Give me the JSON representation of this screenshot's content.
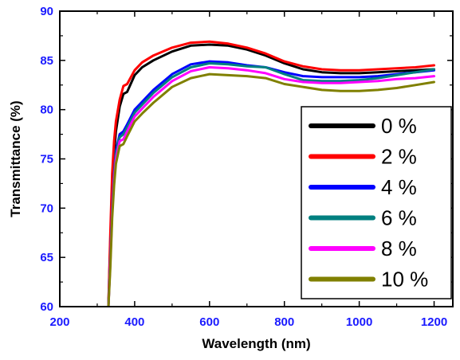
{
  "chart_data": {
    "type": "line",
    "xlabel": "Wavelength (nm)",
    "ylabel": "Transmittance (%)",
    "xlim": [
      200,
      1250
    ],
    "ylim": [
      60,
      90
    ],
    "xticks": [
      200,
      400,
      600,
      800,
      1000,
      1200
    ],
    "yticks": [
      60,
      65,
      70,
      75,
      80,
      85,
      90
    ],
    "grid": false,
    "legend_position": "bottom-right",
    "axis_color": "#000000",
    "tick_label_color": "#1a1aff",
    "series": [
      {
        "name": "0 %",
        "color": "#000000",
        "x": [
          330,
          335,
          340,
          345,
          350,
          360,
          370,
          380,
          400,
          420,
          450,
          500,
          550,
          600,
          650,
          700,
          750,
          800,
          850,
          900,
          950,
          1000,
          1050,
          1100,
          1150,
          1200
        ],
        "y": [
          60.2,
          66.5,
          72.0,
          75.5,
          77.8,
          80.3,
          81.6,
          81.8,
          83.5,
          84.3,
          85.0,
          85.9,
          86.5,
          86.6,
          86.5,
          86.1,
          85.5,
          84.7,
          84.1,
          83.8,
          83.7,
          83.7,
          83.8,
          83.9,
          84.0,
          84.1
        ]
      },
      {
        "name": "2 %",
        "color": "#ff0000",
        "x": [
          330,
          335,
          340,
          345,
          350,
          360,
          370,
          380,
          400,
          420,
          450,
          500,
          550,
          600,
          650,
          700,
          750,
          800,
          850,
          900,
          950,
          1000,
          1050,
          1100,
          1150,
          1200
        ],
        "y": [
          60.2,
          67.5,
          73.5,
          76.8,
          78.8,
          81.0,
          82.4,
          82.6,
          84.0,
          84.8,
          85.5,
          86.3,
          86.8,
          86.9,
          86.7,
          86.3,
          85.7,
          84.9,
          84.4,
          84.1,
          84.0,
          84.0,
          84.1,
          84.2,
          84.3,
          84.5
        ]
      },
      {
        "name": "4 %",
        "color": "#0000ff",
        "x": [
          330,
          335,
          340,
          345,
          350,
          360,
          370,
          380,
          400,
          420,
          450,
          500,
          550,
          600,
          650,
          700,
          750,
          800,
          850,
          900,
          950,
          1000,
          1050,
          1100,
          1150,
          1200
        ],
        "y": [
          60.0,
          65.0,
          70.0,
          73.5,
          75.8,
          77.5,
          77.8,
          78.5,
          80.0,
          80.8,
          82.0,
          83.6,
          84.6,
          84.9,
          84.8,
          84.5,
          84.3,
          83.8,
          83.4,
          83.3,
          83.3,
          83.3,
          83.4,
          83.6,
          83.8,
          84.0
        ]
      },
      {
        "name": "6 %",
        "color": "#008080",
        "x": [
          330,
          335,
          340,
          345,
          350,
          360,
          370,
          380,
          400,
          420,
          450,
          500,
          550,
          600,
          650,
          700,
          750,
          800,
          850,
          900,
          950,
          1000,
          1050,
          1100,
          1150,
          1200
        ],
        "y": [
          60.0,
          64.8,
          69.8,
          73.2,
          75.5,
          77.2,
          77.5,
          78.2,
          79.7,
          80.5,
          81.7,
          83.3,
          84.3,
          84.7,
          84.6,
          84.4,
          84.3,
          83.6,
          83.0,
          82.9,
          82.9,
          83.0,
          83.2,
          83.5,
          83.8,
          84.1
        ]
      },
      {
        "name": "8 %",
        "color": "#ff00ff",
        "x": [
          330,
          335,
          340,
          345,
          350,
          360,
          370,
          380,
          400,
          420,
          450,
          500,
          550,
          600,
          650,
          700,
          750,
          800,
          850,
          900,
          950,
          1000,
          1050,
          1100,
          1150,
          1200
        ],
        "y": [
          60.0,
          64.5,
          69.5,
          72.8,
          75.0,
          76.8,
          77.0,
          77.8,
          79.3,
          80.1,
          81.3,
          82.9,
          83.9,
          84.3,
          84.2,
          84.0,
          83.7,
          83.1,
          82.8,
          82.7,
          82.7,
          82.8,
          82.9,
          83.1,
          83.2,
          83.4
        ]
      },
      {
        "name": "10 %",
        "color": "#808000",
        "x": [
          330,
          335,
          340,
          345,
          350,
          360,
          370,
          380,
          400,
          420,
          450,
          500,
          550,
          600,
          650,
          700,
          750,
          800,
          850,
          900,
          950,
          1000,
          1050,
          1100,
          1150,
          1200
        ],
        "y": [
          60.0,
          64.0,
          69.0,
          72.3,
          74.5,
          76.3,
          76.5,
          77.3,
          78.8,
          79.6,
          80.7,
          82.3,
          83.2,
          83.6,
          83.5,
          83.4,
          83.2,
          82.6,
          82.3,
          82.0,
          81.9,
          81.9,
          82.0,
          82.2,
          82.5,
          82.8
        ]
      }
    ]
  }
}
